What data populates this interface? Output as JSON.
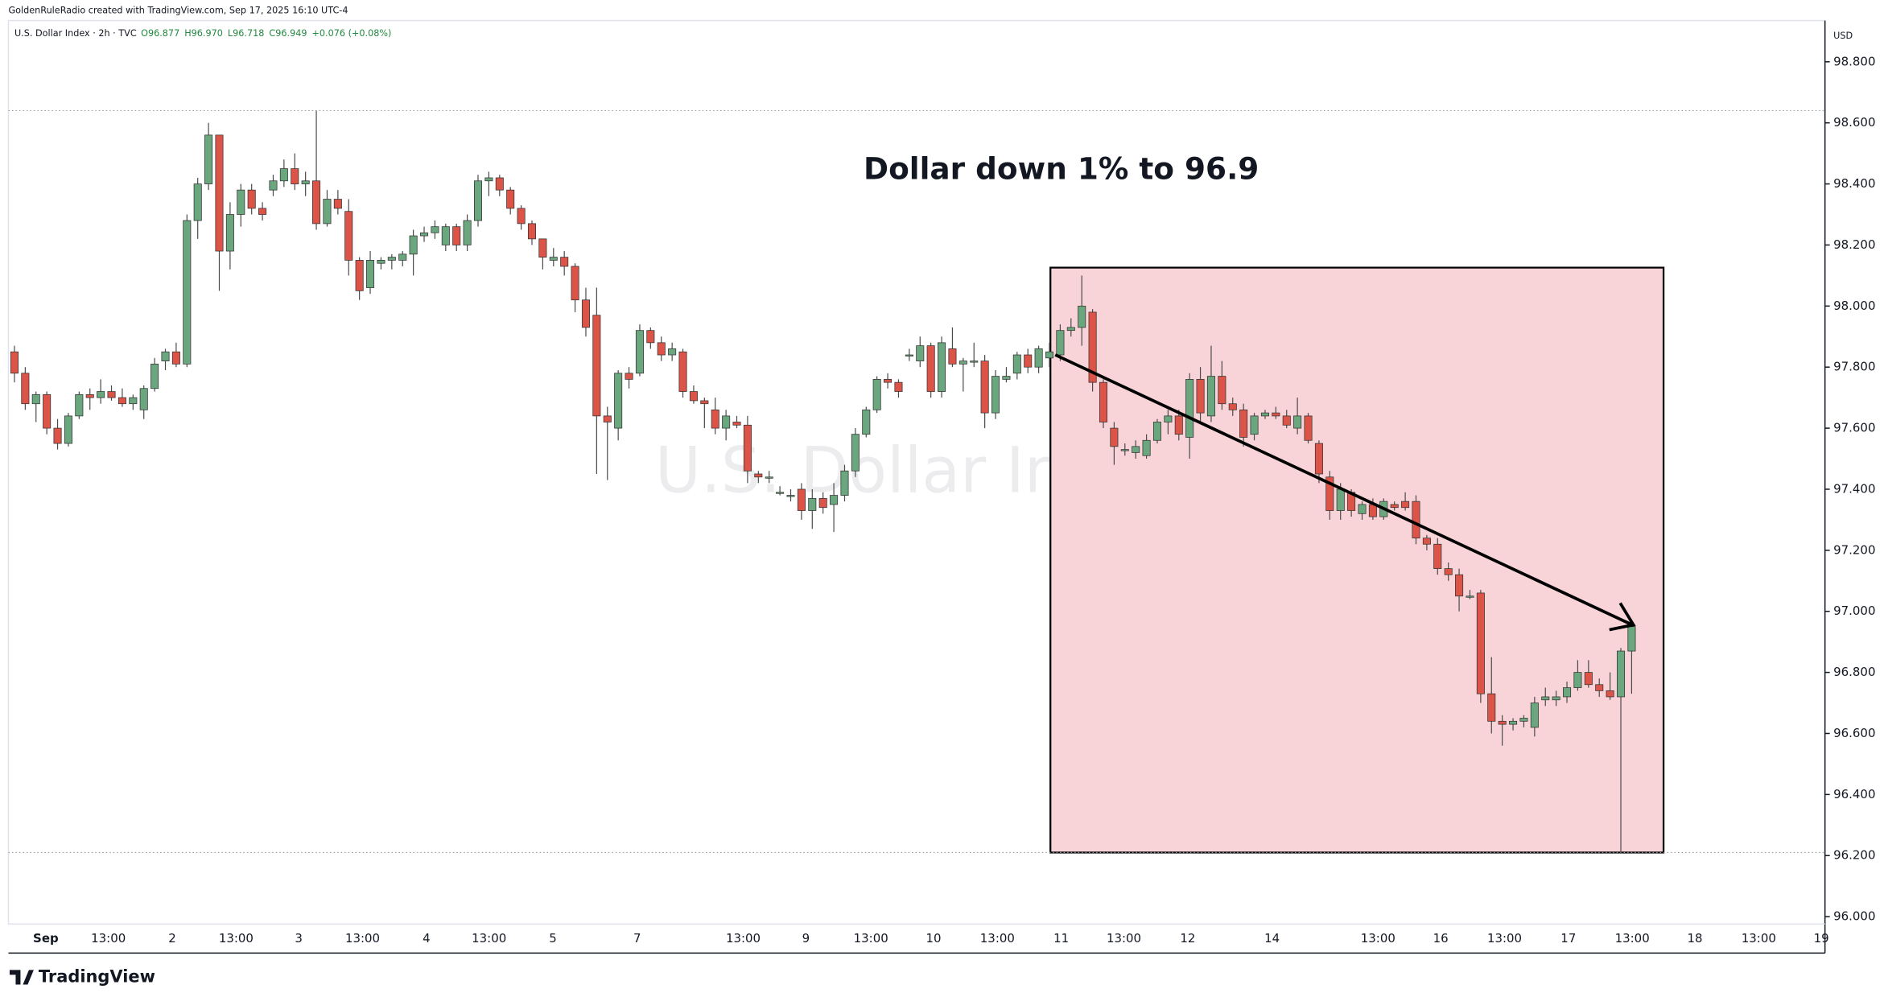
{
  "header": {
    "credit": "GoldenRuleRadio created with TradingView.com, Sep 17, 2025 16:10 UTC-4",
    "symbol": "U.S. Dollar Index · 2h · TVC",
    "ohlc": [
      "O96.877",
      "H96.970",
      "L96.718",
      "C96.949",
      "+0.076 (+0.08%)"
    ]
  },
  "brand": "TradingView",
  "chart_data": {
    "type": "candlestick",
    "title": "Dollar down 1% to 96.9",
    "watermark": "U.S. Dollar Index",
    "currency": "USD",
    "up_color": "#6aa67e",
    "down_color": "#dc5447",
    "ylim": [
      95.976,
      98.935
    ],
    "yticks": [
      {
        "value": 96,
        "label": "96.000"
      },
      {
        "value": 96.2,
        "label": "96.200"
      },
      {
        "value": 96.4,
        "label": "96.400"
      },
      {
        "value": 96.6,
        "label": "96.600"
      },
      {
        "value": 96.8,
        "label": "96.800"
      },
      {
        "value": 97,
        "label": "97.000"
      },
      {
        "value": 97.2,
        "label": "97.200"
      },
      {
        "value": 97.4,
        "label": "97.400"
      },
      {
        "value": 97.6,
        "label": "97.600"
      },
      {
        "value": 97.8,
        "label": "97.800"
      },
      {
        "value": 98,
        "label": "98.000"
      },
      {
        "value": 98.2,
        "label": "98.200"
      },
      {
        "value": 98.4,
        "label": "98.400"
      },
      {
        "value": 98.6,
        "label": "98.600"
      },
      {
        "value": 98.8,
        "label": "98.800"
      }
    ],
    "xtick_labels": [
      "Sep",
      "13:00",
      "2",
      "13:00",
      "3",
      "13:00",
      "4",
      "13:00",
      "5",
      "7",
      "13:00",
      "9",
      "13:00",
      "10",
      "13:00",
      "11",
      "13:00",
      "12",
      "14",
      "13:00",
      "16",
      "13:00",
      "17",
      "13:00",
      "18",
      "13:00",
      "19"
    ],
    "candles": [
      [
        97.85,
        97.87,
        97.75,
        97.78
      ],
      [
        97.78,
        97.8,
        97.66,
        97.68
      ],
      [
        97.68,
        97.72,
        97.62,
        97.71
      ],
      [
        97.71,
        97.72,
        97.58,
        97.6
      ],
      [
        97.6,
        97.63,
        97.53,
        97.55
      ],
      [
        97.55,
        97.65,
        97.54,
        97.64
      ],
      [
        97.64,
        97.72,
        97.63,
        97.71
      ],
      [
        97.71,
        97.73,
        97.66,
        97.7
      ],
      [
        97.7,
        97.76,
        97.68,
        97.72
      ],
      [
        97.72,
        97.74,
        97.69,
        97.7
      ],
      [
        97.7,
        97.73,
        97.67,
        97.68
      ],
      [
        97.68,
        97.71,
        97.66,
        97.7
      ],
      [
        97.66,
        97.74,
        97.63,
        97.73
      ],
      [
        97.73,
        97.83,
        97.72,
        97.81
      ],
      [
        97.82,
        97.86,
        97.79,
        97.85
      ],
      [
        97.85,
        97.88,
        97.8,
        97.81
      ],
      [
        97.81,
        98.3,
        97.8,
        98.28
      ],
      [
        98.28,
        98.42,
        98.22,
        98.4
      ],
      [
        98.4,
        98.6,
        98.38,
        98.56
      ],
      [
        98.56,
        98.56,
        98.05,
        98.18
      ],
      [
        98.18,
        98.34,
        98.12,
        98.3
      ],
      [
        98.3,
        98.4,
        98.26,
        98.38
      ],
      [
        98.38,
        98.4,
        98.3,
        98.32
      ],
      [
        98.32,
        98.34,
        98.28,
        98.3
      ],
      [
        98.38,
        98.43,
        98.36,
        98.41
      ],
      [
        98.41,
        98.48,
        98.39,
        98.45
      ],
      [
        98.45,
        98.5,
        98.38,
        98.4
      ],
      [
        98.4,
        98.44,
        98.36,
        98.41
      ],
      [
        98.41,
        98.64,
        98.25,
        98.27
      ],
      [
        98.27,
        98.38,
        98.26,
        98.35
      ],
      [
        98.35,
        98.38,
        98.3,
        98.32
      ],
      [
        98.31,
        98.35,
        98.1,
        98.15
      ],
      [
        98.15,
        98.16,
        98.02,
        98.05
      ],
      [
        98.06,
        98.18,
        98.04,
        98.15
      ],
      [
        98.14,
        98.16,
        98.12,
        98.15
      ],
      [
        98.15,
        98.17,
        98.12,
        98.16
      ],
      [
        98.15,
        98.18,
        98.13,
        98.17
      ],
      [
        98.17,
        98.25,
        98.1,
        98.23
      ],
      [
        98.23,
        98.26,
        98.21,
        98.24
      ],
      [
        98.24,
        98.28,
        98.22,
        98.26
      ],
      [
        98.2,
        98.27,
        98.18,
        98.26
      ],
      [
        98.26,
        98.27,
        98.18,
        98.2
      ],
      [
        98.2,
        98.3,
        98.18,
        98.28
      ],
      [
        98.28,
        98.43,
        98.26,
        98.41
      ],
      [
        98.41,
        98.44,
        98.36,
        98.42
      ],
      [
        98.42,
        98.43,
        98.36,
        98.38
      ],
      [
        98.38,
        98.39,
        98.3,
        98.32
      ],
      [
        98.32,
        98.33,
        98.25,
        98.27
      ],
      [
        98.27,
        98.28,
        98.2,
        98.22
      ],
      [
        98.22,
        98.22,
        98.12,
        98.16
      ],
      [
        98.15,
        98.19,
        98.13,
        98.16
      ],
      [
        98.16,
        98.18,
        98.1,
        98.13
      ],
      [
        98.13,
        98.14,
        97.98,
        98.02
      ],
      [
        98.02,
        98.06,
        97.9,
        97.93
      ],
      [
        97.97,
        98.06,
        97.45,
        97.64
      ],
      [
        97.64,
        97.67,
        97.43,
        97.62
      ],
      [
        97.6,
        97.79,
        97.56,
        97.78
      ],
      [
        97.78,
        97.8,
        97.73,
        97.76
      ],
      [
        97.78,
        97.94,
        97.77,
        97.92
      ],
      [
        97.92,
        97.93,
        97.86,
        97.88
      ],
      [
        97.88,
        97.9,
        97.82,
        97.84
      ],
      [
        97.84,
        97.88,
        97.82,
        97.86
      ],
      [
        97.85,
        97.86,
        97.7,
        97.72
      ],
      [
        97.72,
        97.74,
        97.68,
        97.69
      ],
      [
        97.69,
        97.7,
        97.6,
        97.68
      ],
      [
        97.66,
        97.7,
        97.58,
        97.6
      ],
      [
        97.6,
        97.66,
        97.56,
        97.64
      ],
      [
        97.62,
        97.64,
        97.6,
        97.61
      ],
      [
        97.61,
        97.64,
        97.42,
        97.46
      ],
      [
        97.45,
        97.46,
        97.42,
        97.44
      ],
      [
        97.44,
        97.46,
        97.42,
        97.44
      ],
      [
        97.39,
        97.41,
        97.38,
        97.39
      ],
      [
        97.38,
        97.4,
        97.36,
        97.38
      ],
      [
        97.4,
        97.42,
        97.3,
        97.33
      ],
      [
        97.33,
        97.4,
        97.27,
        97.37
      ],
      [
        97.37,
        97.39,
        97.32,
        97.34
      ],
      [
        97.35,
        97.42,
        97.26,
        97.38
      ],
      [
        97.38,
        97.48,
        97.36,
        97.46
      ],
      [
        97.46,
        97.6,
        97.44,
        97.58
      ],
      [
        97.58,
        97.67,
        97.57,
        97.66
      ],
      [
        97.66,
        97.77,
        97.65,
        97.76
      ],
      [
        97.76,
        97.78,
        97.73,
        97.75
      ],
      [
        97.75,
        97.76,
        97.7,
        97.72
      ],
      [
        97.84,
        97.86,
        97.82,
        97.84
      ],
      [
        97.82,
        97.9,
        97.8,
        97.87
      ],
      [
        97.87,
        97.88,
        97.7,
        97.72
      ],
      [
        97.72,
        97.9,
        97.7,
        97.88
      ],
      [
        97.86,
        97.93,
        97.8,
        97.81
      ],
      [
        97.81,
        97.83,
        97.72,
        97.82
      ],
      [
        97.82,
        97.88,
        97.8,
        97.82
      ],
      [
        97.82,
        97.84,
        97.6,
        97.65
      ],
      [
        97.65,
        97.79,
        97.63,
        97.77
      ],
      [
        97.76,
        97.8,
        97.75,
        97.77
      ],
      [
        97.78,
        97.85,
        97.76,
        97.84
      ],
      [
        97.84,
        97.86,
        97.78,
        97.8
      ],
      [
        97.8,
        97.87,
        97.78,
        97.86
      ],
      [
        97.83,
        97.88,
        97.8,
        97.85
      ],
      [
        97.84,
        97.94,
        97.82,
        97.92
      ],
      [
        97.92,
        97.96,
        97.9,
        97.93
      ],
      [
        97.93,
        98.1,
        97.87,
        98
      ],
      [
        97.98,
        97.99,
        97.72,
        97.75
      ],
      [
        97.75,
        97.76,
        97.6,
        97.62
      ],
      [
        97.6,
        97.62,
        97.48,
        97.54
      ],
      [
        97.53,
        97.55,
        97.51,
        97.53
      ],
      [
        97.52,
        97.56,
        97.5,
        97.54
      ],
      [
        97.51,
        97.58,
        97.5,
        97.56
      ],
      [
        97.56,
        97.63,
        97.55,
        97.62
      ],
      [
        97.62,
        97.66,
        97.58,
        97.64
      ],
      [
        97.64,
        97.66,
        97.56,
        97.58
      ],
      [
        97.57,
        97.78,
        97.5,
        97.76
      ],
      [
        97.76,
        97.8,
        97.62,
        97.65
      ],
      [
        97.64,
        97.87,
        97.62,
        97.77
      ],
      [
        97.77,
        97.82,
        97.66,
        97.68
      ],
      [
        97.68,
        97.7,
        97.64,
        97.66
      ],
      [
        97.66,
        97.68,
        97.54,
        97.57
      ],
      [
        97.58,
        97.65,
        97.56,
        97.64
      ],
      [
        97.64,
        97.66,
        97.63,
        97.65
      ],
      [
        97.65,
        97.67,
        97.63,
        97.64
      ],
      [
        97.64,
        97.66,
        97.6,
        97.61
      ],
      [
        97.6,
        97.7,
        97.58,
        97.64
      ],
      [
        97.64,
        97.65,
        97.55,
        97.56
      ],
      [
        97.55,
        97.56,
        97.42,
        97.45
      ],
      [
        97.44,
        97.46,
        97.3,
        97.33
      ],
      [
        97.33,
        97.42,
        97.3,
        97.4
      ],
      [
        97.39,
        97.4,
        97.31,
        97.33
      ],
      [
        97.32,
        97.36,
        97.3,
        97.35
      ],
      [
        97.35,
        97.37,
        97.3,
        97.31
      ],
      [
        97.31,
        97.37,
        97.3,
        97.36
      ],
      [
        97.35,
        97.36,
        97.33,
        97.34
      ],
      [
        97.36,
        97.39,
        97.33,
        97.34
      ],
      [
        97.36,
        97.38,
        97.22,
        97.24
      ],
      [
        97.24,
        97.25,
        97.2,
        97.22
      ],
      [
        97.22,
        97.24,
        97.12,
        97.14
      ],
      [
        97.14,
        97.16,
        97.1,
        97.12
      ],
      [
        97.12,
        97.14,
        97,
        97.05
      ],
      [
        97.05,
        97.07,
        97.04,
        97.05
      ],
      [
        97.06,
        97.07,
        96.7,
        96.73
      ],
      [
        96.73,
        96.85,
        96.6,
        96.64
      ],
      [
        96.64,
        96.66,
        96.56,
        96.63
      ],
      [
        96.63,
        96.65,
        96.61,
        96.64
      ],
      [
        96.64,
        96.66,
        96.62,
        96.65
      ],
      [
        96.62,
        96.72,
        96.59,
        96.7
      ],
      [
        96.71,
        96.75,
        96.69,
        96.72
      ],
      [
        96.71,
        96.74,
        96.69,
        96.72
      ],
      [
        96.72,
        96.77,
        96.7,
        96.75
      ],
      [
        96.75,
        96.84,
        96.74,
        96.8
      ],
      [
        96.8,
        96.84,
        96.75,
        96.76
      ],
      [
        96.76,
        96.78,
        96.72,
        96.74
      ],
      [
        96.74,
        96.8,
        96.71,
        96.72
      ],
      [
        96.72,
        96.88,
        96.21,
        96.87
      ],
      [
        96.87,
        96.97,
        96.73,
        96.95
      ]
    ]
  }
}
